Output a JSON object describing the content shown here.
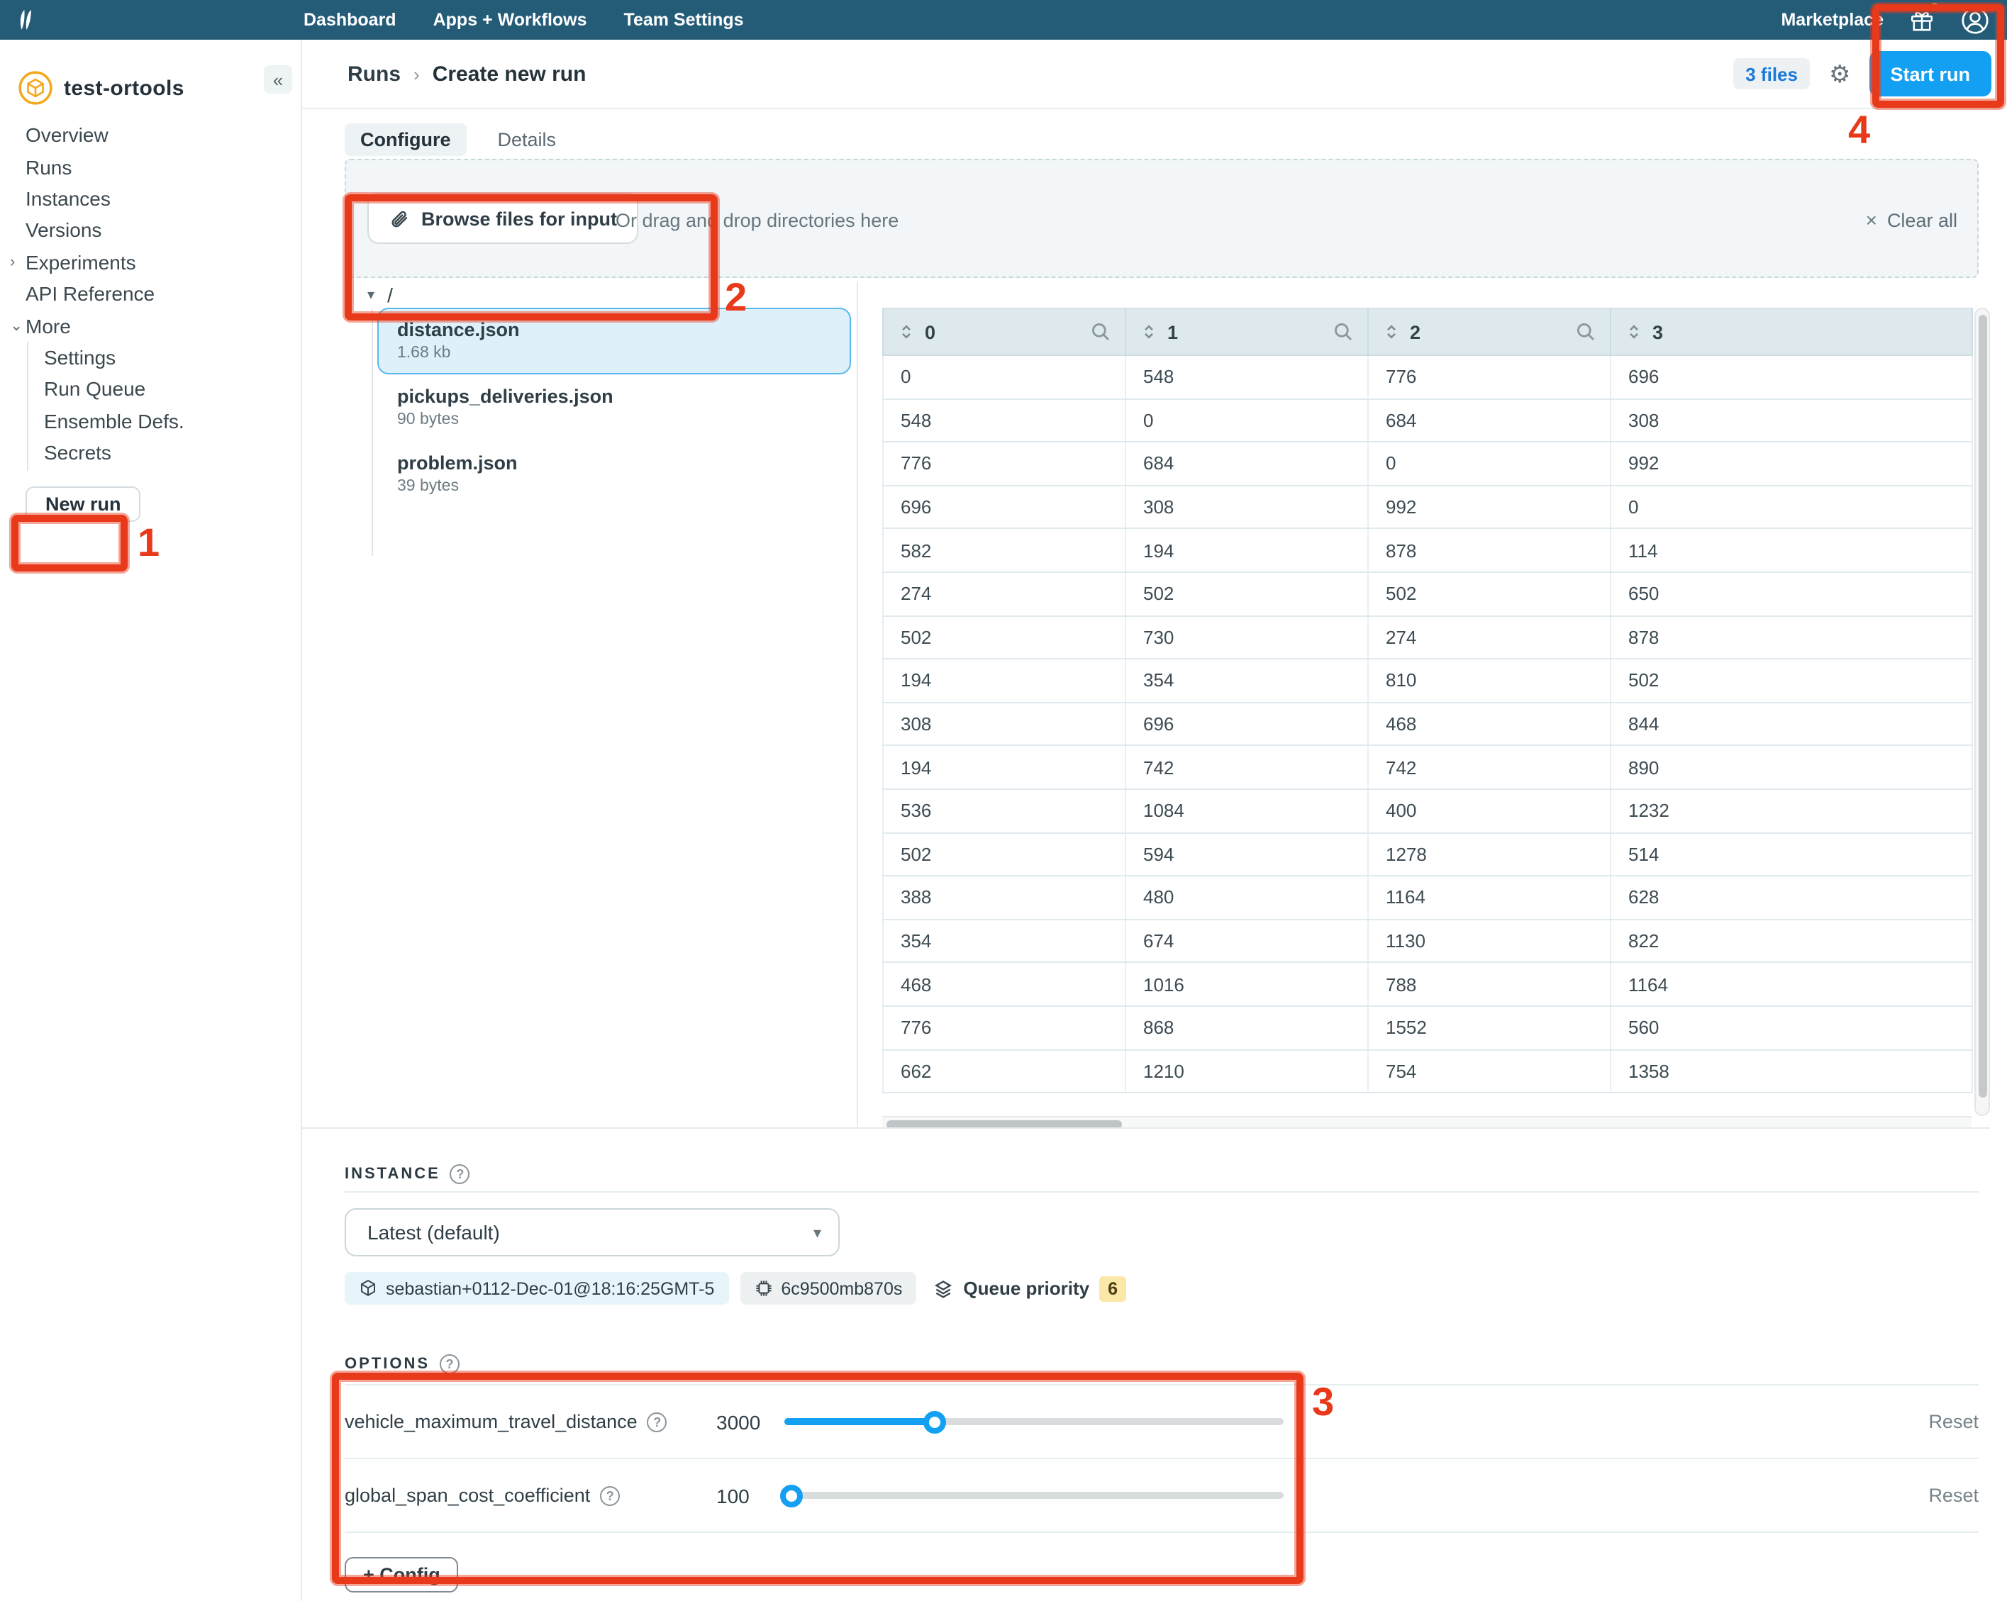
{
  "top_nav": {
    "links": [
      "Dashboard",
      "Apps + Workflows",
      "Team Settings"
    ],
    "marketplace": "Marketplace"
  },
  "sidebar": {
    "app_name": "test-ortools",
    "collapse_glyph": "«",
    "items": [
      {
        "label": "Overview"
      },
      {
        "label": "Runs"
      },
      {
        "label": "Instances"
      },
      {
        "label": "Versions"
      },
      {
        "label": "Experiments",
        "chevron": "right"
      },
      {
        "label": "API Reference"
      },
      {
        "label": "More",
        "chevron": "down"
      },
      {
        "label": "Settings",
        "child": true
      },
      {
        "label": "Run Queue",
        "child": true
      },
      {
        "label": "Ensemble Defs.",
        "child": true
      },
      {
        "label": "Secrets",
        "child": true
      }
    ],
    "new_run_label": "New run"
  },
  "header": {
    "breadcrumb_parent": "Runs",
    "breadcrumb_sep": "›",
    "breadcrumb_current": "Create new run",
    "files_badge": "3 files",
    "start_run_label": "Start run"
  },
  "tabs": {
    "configure": "Configure",
    "details": "Details",
    "active": "Configure"
  },
  "dropzone": {
    "browse_label": "Browse files for input",
    "drag_text": "Or drag and drop directories here",
    "clear_all": "Clear all",
    "clear_glyph": "×"
  },
  "file_tree": {
    "root": "/",
    "root_caret": "▾",
    "files": [
      {
        "name": "distance.json",
        "size": "1.68 kb",
        "selected": true
      },
      {
        "name": "pickups_deliveries.json",
        "size": "90 bytes",
        "selected": false
      },
      {
        "name": "problem.json",
        "size": "39 bytes",
        "selected": false
      }
    ]
  },
  "table": {
    "columns": [
      "0",
      "1",
      "2",
      "3"
    ],
    "rows": [
      [
        "0",
        "548",
        "776",
        "696"
      ],
      [
        "548",
        "0",
        "684",
        "308"
      ],
      [
        "776",
        "684",
        "0",
        "992"
      ],
      [
        "696",
        "308",
        "992",
        "0"
      ],
      [
        "582",
        "194",
        "878",
        "114"
      ],
      [
        "274",
        "502",
        "502",
        "650"
      ],
      [
        "502",
        "730",
        "274",
        "878"
      ],
      [
        "194",
        "354",
        "810",
        "502"
      ],
      [
        "308",
        "696",
        "468",
        "844"
      ],
      [
        "194",
        "742",
        "742",
        "890"
      ],
      [
        "536",
        "1084",
        "400",
        "1232"
      ],
      [
        "502",
        "594",
        "1278",
        "514"
      ],
      [
        "388",
        "480",
        "1164",
        "628"
      ],
      [
        "354",
        "674",
        "1130",
        "822"
      ],
      [
        "468",
        "1016",
        "788",
        "1164"
      ],
      [
        "776",
        "868",
        "1552",
        "560"
      ],
      [
        "662",
        "1210",
        "754",
        "1358"
      ]
    ]
  },
  "instance": {
    "label": "INSTANCE",
    "selected_value": "Latest (default)",
    "caret_glyph": "▾",
    "version_badge": "sebastian+0112-Dec-01@18:16:25GMT-5",
    "instance_id": "6c9500mb870s",
    "queue_label": "Queue priority",
    "queue_value": "6"
  },
  "options": {
    "label": "OPTIONS",
    "reset_label": "Reset",
    "rows": [
      {
        "name": "vehicle_maximum_travel_distance",
        "value": "3000",
        "fill_pct": 30
      },
      {
        "name": "global_span_cost_coefficient",
        "value": "100",
        "fill_pct": 1.5
      }
    ],
    "config_button": "+ Config"
  },
  "annotations": {
    "numbers": [
      "1",
      "2",
      "3",
      "4"
    ],
    "color": "#e8391b"
  },
  "colors": {
    "nav_bg": "#245c78",
    "accent_blue": "#14a0f2",
    "selected_file_bg": "#def1fb",
    "selected_file_border": "#58b9ea",
    "queue_badge_bg": "#fbe7a8",
    "org_icon_orange": "#f6a71b",
    "annotation_red": "#e8391b",
    "files_badge_text": "#1b79d7"
  }
}
